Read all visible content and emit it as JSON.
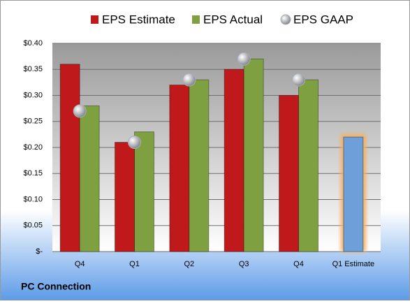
{
  "chart_data": {
    "type": "bar",
    "title": "PC Connection",
    "categories": [
      "Q4",
      "Q1",
      "Q2",
      "Q3",
      "Q4",
      "Q1 Estimate"
    ],
    "series": [
      {
        "name": "EPS Estimate",
        "color": "#c0191c",
        "values": [
          0.36,
          0.21,
          0.32,
          0.35,
          0.3,
          null
        ]
      },
      {
        "name": "EPS Actual",
        "color": "#7fa040",
        "values": [
          0.28,
          0.23,
          0.33,
          0.37,
          0.33,
          null
        ]
      },
      {
        "name": "EPS GAAP",
        "color": "#a9adb4",
        "marker": "circle",
        "values": [
          0.27,
          0.21,
          0.33,
          0.37,
          0.33,
          null
        ]
      }
    ],
    "forecast": {
      "color": "#6f9fd8",
      "glow": "#f5b063",
      "values": [
        null,
        null,
        null,
        null,
        null,
        0.22
      ]
    },
    "ylim": [
      0,
      0.4
    ],
    "yticks": [
      {
        "value": 0,
        "label": "$-"
      },
      {
        "value": 0.05,
        "label": "$0.05"
      },
      {
        "value": 0.1,
        "label": "$0.10"
      },
      {
        "value": 0.15,
        "label": "$0.15"
      },
      {
        "value": 0.2,
        "label": "$0.20"
      },
      {
        "value": 0.25,
        "label": "$0.25"
      },
      {
        "value": 0.3,
        "label": "$0.30"
      },
      {
        "value": 0.35,
        "label": "$0.35"
      },
      {
        "value": 0.4,
        "label": "$0.40"
      }
    ],
    "grid": true,
    "legend": "top"
  }
}
